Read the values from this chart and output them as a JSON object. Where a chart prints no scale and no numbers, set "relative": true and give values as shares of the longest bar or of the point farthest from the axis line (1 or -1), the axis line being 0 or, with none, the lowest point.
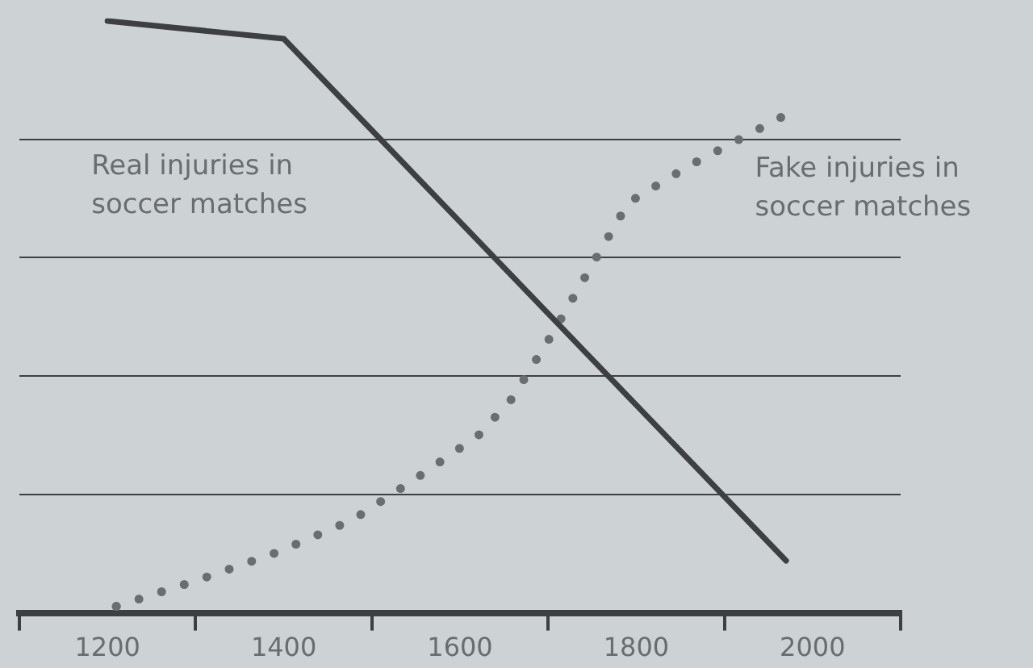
{
  "chart_data": {
    "type": "line",
    "relative": true,
    "xlim": [
      1100,
      2100
    ],
    "xticks": [
      {
        "value": 1100,
        "label": null
      },
      1200,
      {
        "value": 1300,
        "label": null
      },
      1400,
      {
        "value": 1500,
        "label": null
      },
      1600,
      {
        "value": 1700,
        "label": null
      },
      1800,
      {
        "value": 1900,
        "label": null
      },
      2000,
      {
        "value": 2100,
        "label": null
      }
    ],
    "grid": "y",
    "legend": false,
    "marker": "none",
    "series": [
      {
        "name": "Real injuries in soccer matches",
        "color": "#3d3f42",
        "line_style": "solid",
        "x": [
          1200,
          1400,
          1970
        ],
        "values": [
          1.0,
          0.97,
          0.088
        ]
      },
      {
        "name": "Fake injuries in soccer matches",
        "color": "#6b6e71",
        "line_style": "dotted",
        "x": [
          1210,
          1302,
          1392,
          1478,
          1550,
          1621,
          1659,
          1705,
          1748,
          1791,
          1862,
          1964
        ],
        "values": [
          0.011,
          0.055,
          0.102,
          0.157,
          0.227,
          0.3,
          0.362,
          0.472,
          0.583,
          0.693,
          0.757,
          0.837
        ]
      }
    ]
  }
}
